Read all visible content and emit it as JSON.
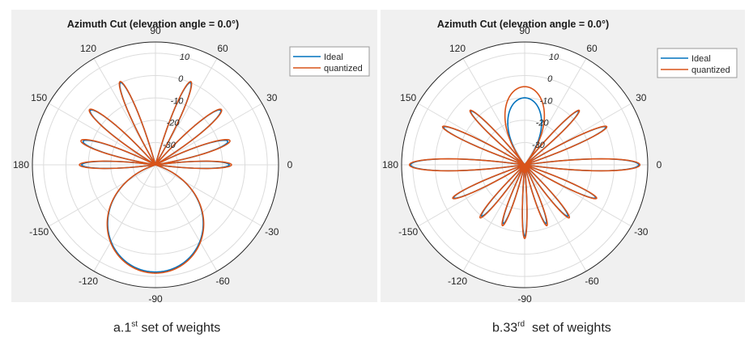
{
  "chart_data": [
    {
      "type": "polar",
      "title": "Azimuth Cut (elevation angle = 0.0°)",
      "angle_ticks": [
        "90",
        "60",
        "30",
        "0",
        "-30",
        "-60",
        "-90",
        "-120",
        "-150",
        "180",
        "150",
        "120"
      ],
      "angle_tick_degrees": [
        90,
        60,
        30,
        0,
        -30,
        -60,
        -90,
        -120,
        -150,
        180,
        150,
        120
      ],
      "radial_ticks": [
        "10",
        "0",
        "-10",
        "-20",
        "-30"
      ],
      "rlim": [
        -40,
        15
      ],
      "grid": true,
      "legend_position": "top-right",
      "series_colors": [
        "#0072bd",
        "#d95319"
      ],
      "series": [
        {
          "name": "Ideal",
          "color": "#0072bd",
          "lobes": [
            [
              0,
              -7,
              6,
              -0.6
            ],
            [
              18,
              -6,
              7,
              -1.2
            ],
            [
              40,
              -2,
              7,
              -1.5
            ],
            [
              67,
              0,
              6,
              -3
            ],
            [
              113,
              0,
              6,
              -3
            ],
            [
              140,
              -2,
              7,
              -1.5
            ],
            [
              162,
              -6,
              7,
              -1.2
            ],
            [
              180,
              -7,
              6,
              -0.6
            ],
            [
              -90,
              8,
              60,
              -1.5
            ]
          ]
        },
        {
          "name": "quantized",
          "color": "#d95319",
          "lobes": [
            [
              0,
              -6,
              6,
              -0.6
            ],
            [
              18,
              -5,
              7,
              -1.2
            ],
            [
              40,
              -1.5,
              7,
              -1.5
            ],
            [
              67,
              0.5,
              6,
              -3
            ],
            [
              113,
              0.5,
              6,
              -3
            ],
            [
              140,
              -1.5,
              7,
              -1.5
            ],
            [
              162,
              -5,
              7,
              -1.2
            ],
            [
              180,
              -6,
              6,
              -0.6
            ],
            [
              -90,
              8.5,
              60,
              -1.5
            ]
          ]
        }
      ]
    },
    {
      "type": "polar",
      "title": "Azimuth Cut (elevation angle = 0.0°)",
      "angle_ticks": [
        "90",
        "60",
        "30",
        "0",
        "-30",
        "-60",
        "-90",
        "-120",
        "-150",
        "180",
        "150",
        "120"
      ],
      "angle_tick_degrees": [
        90,
        60,
        30,
        0,
        -30,
        -60,
        -90,
        -120,
        -150,
        180,
        150,
        120
      ],
      "radial_ticks": [
        "10",
        "0",
        "-10",
        "-20",
        "-30"
      ],
      "rlim": [
        -40,
        15
      ],
      "grid": true,
      "legend_position": "top-right",
      "series_colors": [
        "#0072bd",
        "#d95319"
      ],
      "series": [
        {
          "name": "Ideal",
          "color": "#0072bd",
          "lobes": [
            [
              0,
              11,
              6.5,
              -4
            ],
            [
              180,
              11,
              6.5,
              -4
            ],
            [
              25,
              0,
              5,
              -5
            ],
            [
              155,
              0,
              5,
              -5
            ],
            [
              45,
              -6,
              5,
              -8
            ],
            [
              135,
              -6,
              5,
              -8
            ],
            [
              90,
              -10,
              32,
              -6
            ],
            [
              -25,
              -5,
              5,
              -7
            ],
            [
              -155,
              -5,
              5,
              -7
            ],
            [
              -50,
              -10,
              5,
              -7
            ],
            [
              -130,
              -10,
              5,
              -7
            ],
            [
              -70,
              -12,
              5,
              -7
            ],
            [
              -110,
              -12,
              5,
              -7
            ],
            [
              -90,
              -8,
              4,
              -7
            ]
          ]
        },
        {
          "name": "quantized",
          "color": "#d95319",
          "lobes": [
            [
              0,
              11.5,
              6.5,
              -4
            ],
            [
              180,
              11.5,
              6.5,
              -4
            ],
            [
              25,
              0.5,
              5,
              -5
            ],
            [
              155,
              0.5,
              5,
              -5
            ],
            [
              45,
              -5.5,
              5,
              -8
            ],
            [
              135,
              -5.5,
              5,
              -8
            ],
            [
              90,
              -5,
              32,
              -6
            ],
            [
              -25,
              -4.5,
              5,
              -7
            ],
            [
              -155,
              -4.5,
              5,
              -7
            ],
            [
              -50,
              -9,
              5,
              -7
            ],
            [
              -130,
              -9,
              5,
              -7
            ],
            [
              -70,
              -11,
              5,
              -7
            ],
            [
              -110,
              -11,
              5,
              -7
            ],
            [
              -90,
              -7,
              4,
              -7
            ]
          ]
        }
      ]
    }
  ],
  "captions": {
    "a_prefix": "a.1",
    "a_sup": "st",
    "a_suffix": " set of weights",
    "b_prefix": "b.33",
    "b_sup": "rd",
    "b_suffix": "  set of weights"
  }
}
